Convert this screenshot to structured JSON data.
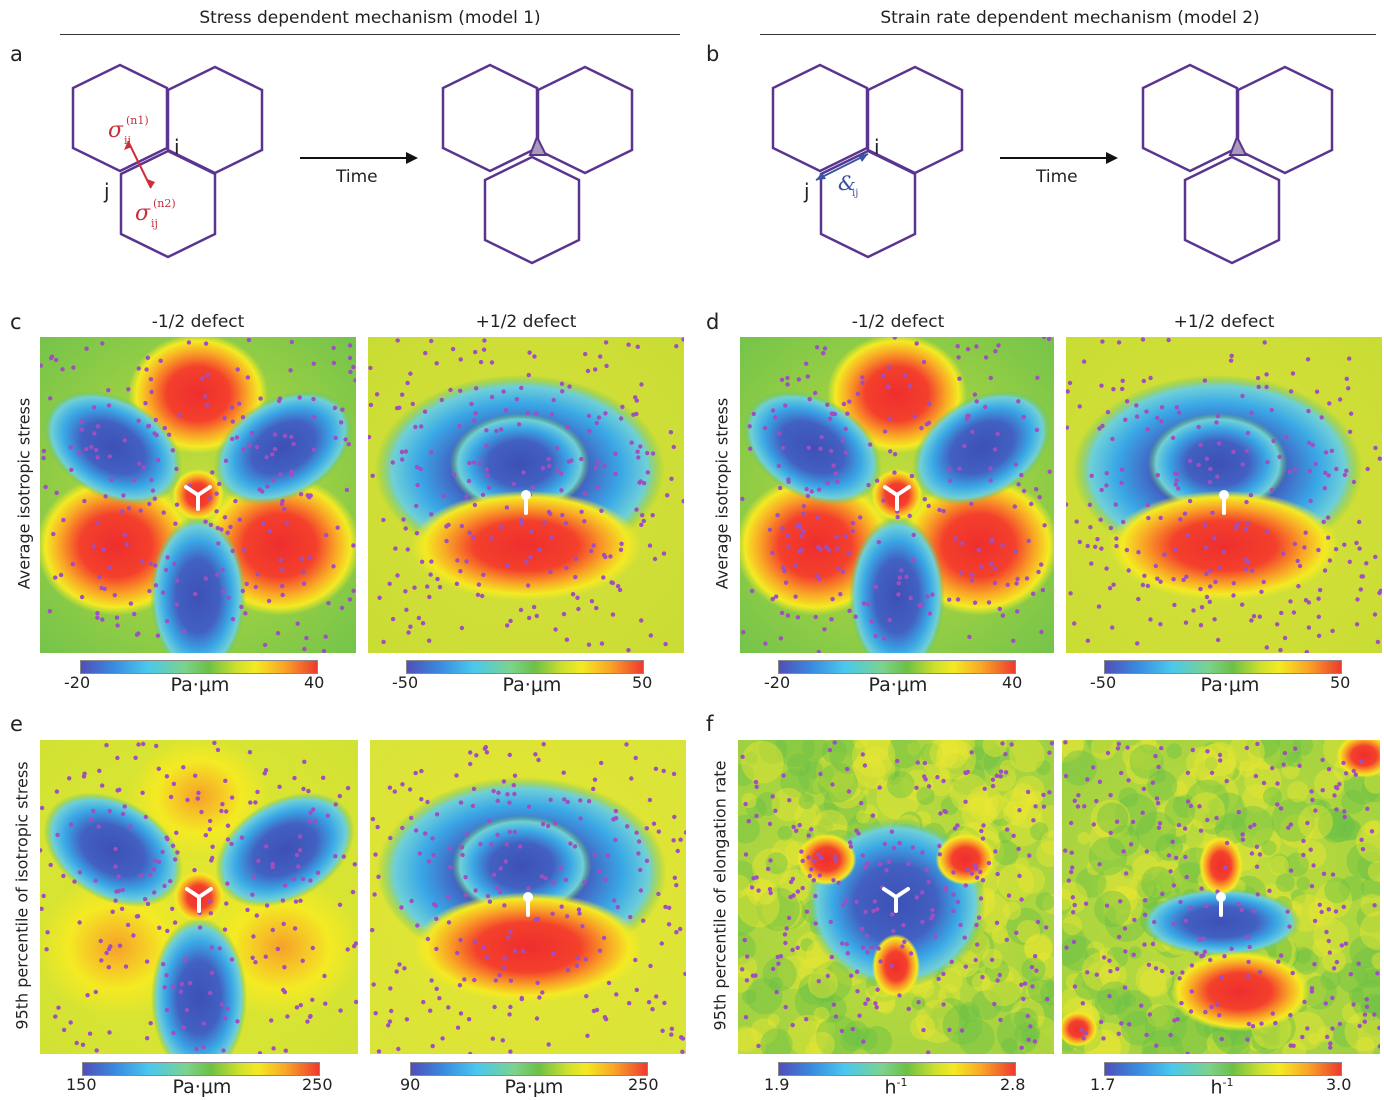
{
  "headers": {
    "left": "Stress dependent mechanism (model 1)",
    "right": "Strain rate dependent mechanism (model 2)"
  },
  "panel_letters": [
    "a",
    "b",
    "c",
    "d",
    "e",
    "f"
  ],
  "schematic": {
    "time_label": "Time",
    "vertex_i": "i",
    "vertex_j": "j",
    "sigma_symbol": "σ",
    "sub_ij": "ij",
    "sup_n1": "(n1)",
    "sup_n2": "(n2)",
    "strain_symbol": "&",
    "colors": {
      "cell_edge": "#5a3590",
      "model1_arrow": "#d02c3c",
      "model2_arrow": "#3a55a5",
      "junction_fill": "#a89ab8"
    }
  },
  "column_titles": {
    "c_left": "-1/2 defect",
    "c_right": "+1/2 defect",
    "d_left": "-1/2 defect",
    "d_right": "+1/2 defect"
  },
  "row_labels": {
    "c": "Average isotropic stress",
    "d": "Average isotropic stress",
    "e": "95th percentile of isotropic stress",
    "f": "95th percentile of elongation rate"
  },
  "colorbars": {
    "c_left": {
      "min": "-20",
      "max": "40",
      "unit": "Pa·μm"
    },
    "c_right": {
      "min": "-50",
      "max": "50",
      "unit": "Pa·μm"
    },
    "d_left": {
      "min": "-20",
      "max": "40",
      "unit": "Pa·μm"
    },
    "d_right": {
      "min": "-50",
      "max": "50",
      "unit": "Pa·μm"
    },
    "e_left": {
      "min": "150",
      "max": "250",
      "unit": "Pa·μm"
    },
    "e_right": {
      "min": "90",
      "max": "250",
      "unit": "Pa·μm"
    },
    "f_left": {
      "min": "1.9",
      "max": "2.8",
      "unit": "h",
      "unit_sup": "-1"
    },
    "f_right": {
      "min": "1.7",
      "max": "3.0",
      "unit": "h",
      "unit_sup": "-1"
    }
  },
  "colormap": [
    "#4f4fb8",
    "#3a8be0",
    "#49c8ee",
    "#6cc046",
    "#f4ea23",
    "#f9a626",
    "#ee3a2f"
  ],
  "dot_color": "#a04fc0"
}
